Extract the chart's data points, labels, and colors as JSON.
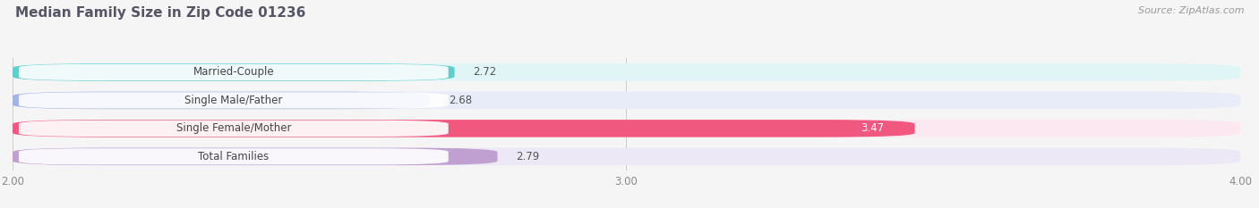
{
  "title": "Median Family Size in Zip Code 01236",
  "source": "Source: ZipAtlas.com",
  "categories": [
    "Married-Couple",
    "Single Male/Father",
    "Single Female/Mother",
    "Total Families"
  ],
  "values": [
    2.72,
    2.68,
    3.47,
    2.79
  ],
  "bar_colors": [
    "#5ecece",
    "#a0b4e8",
    "#f05880",
    "#c0a0d0"
  ],
  "bar_bg_colors": [
    "#e0f5f5",
    "#e8ecf8",
    "#fce8f0",
    "#ede8f5"
  ],
  "xlim_start": 2.0,
  "xlim_end": 4.0,
  "xticks": [
    2.0,
    3.0,
    4.0
  ],
  "xtick_labels": [
    "2.00",
    "3.00",
    "4.00"
  ],
  "title_color": "#555566",
  "label_text_color": "#444444",
  "value_label_inside_color": "#ffffff",
  "value_label_outside_color": "#555555",
  "background_color": "#f5f5f5",
  "title_fontsize": 11,
  "label_fontsize": 8.5,
  "value_fontsize": 8.5,
  "source_fontsize": 8
}
